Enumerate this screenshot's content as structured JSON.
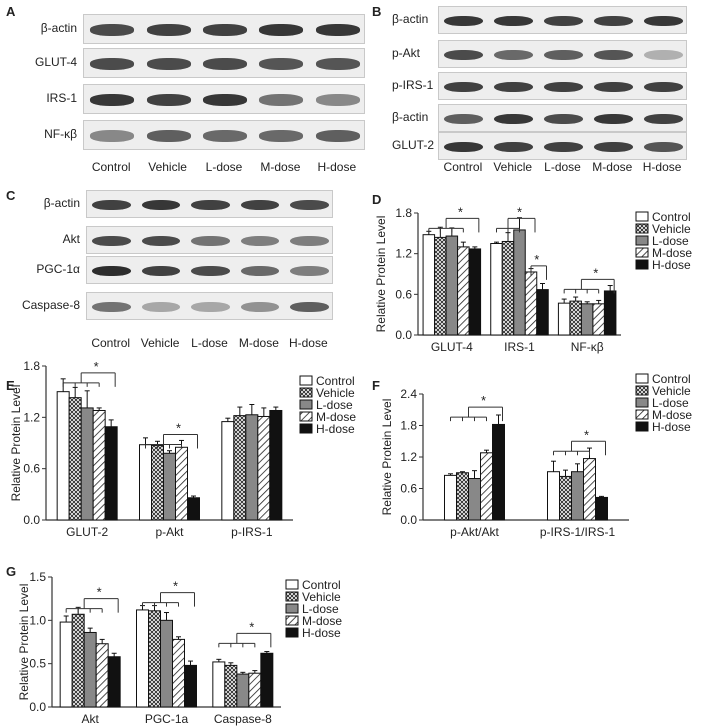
{
  "colors": {
    "band": "#222222",
    "strip": "#eeeeee",
    "axis": "#333333",
    "fills": [
      "#ffffff",
      "crosshatch",
      "#888888",
      "diagonal",
      "#111111"
    ]
  },
  "blots": {
    "A": {
      "letter": "A",
      "rows": [
        "β-actin",
        "GLUT-4",
        "IRS-1",
        "NF-κβ"
      ],
      "intensity": [
        [
          0.8,
          0.85,
          0.85,
          0.9,
          0.9
        ],
        [
          0.8,
          0.8,
          0.8,
          0.75,
          0.75
        ],
        [
          0.9,
          0.85,
          0.9,
          0.6,
          0.5
        ],
        [
          0.5,
          0.7,
          0.65,
          0.65,
          0.7
        ]
      ],
      "lanes": [
        "Control",
        "Vehicle",
        "L-dose",
        "M-dose",
        "H-dose"
      ]
    },
    "B": {
      "letter": "B",
      "rows": [
        "β-actin",
        "p-Akt",
        "p-IRS-1",
        "β-actin",
        "GLUT-2"
      ],
      "intensity": [
        [
          0.9,
          0.9,
          0.85,
          0.85,
          0.9
        ],
        [
          0.8,
          0.65,
          0.7,
          0.75,
          0.3
        ],
        [
          0.85,
          0.85,
          0.85,
          0.85,
          0.85
        ],
        [
          0.7,
          0.9,
          0.8,
          0.9,
          0.85
        ],
        [
          0.9,
          0.85,
          0.85,
          0.85,
          0.75
        ]
      ],
      "lanes": [
        "Control",
        "Vehicle",
        "L-dose",
        "M-dose",
        "H-dose"
      ]
    },
    "C": {
      "letter": "C",
      "rows": [
        "β-actin",
        "Akt",
        "PGC-1α",
        "Caspase-8"
      ],
      "intensity": [
        [
          0.85,
          0.9,
          0.85,
          0.85,
          0.8
        ],
        [
          0.8,
          0.8,
          0.6,
          0.55,
          0.55
        ],
        [
          0.95,
          0.85,
          0.8,
          0.65,
          0.55
        ],
        [
          0.6,
          0.35,
          0.35,
          0.45,
          0.7
        ]
      ],
      "lanes": [
        "Control",
        "Vehicle",
        "L-dose",
        "M-dose",
        "H-dose"
      ]
    }
  },
  "chart_data": [
    {
      "letter": "D",
      "type": "bar",
      "categories": [
        "GLUT-4",
        "IRS-1",
        "NF-κβ"
      ],
      "ylabel": "Relative Protein Level",
      "ylim": [
        0,
        1.8
      ],
      "yticks": [
        "0.0",
        "0.6",
        "1.2",
        "1.8"
      ],
      "ytick_values": [
        0,
        0.6,
        1.2,
        1.8
      ],
      "series": [
        {
          "name": "Control",
          "values": [
            1.48,
            1.35,
            0.47
          ],
          "errors": [
            0.05,
            0.02,
            0.06
          ]
        },
        {
          "name": "Vehicle",
          "values": [
            1.44,
            1.38,
            0.5
          ],
          "errors": [
            0.15,
            0.13,
            0.06
          ]
        },
        {
          "name": "L-dose",
          "values": [
            1.46,
            1.55,
            0.46
          ],
          "errors": [
            0.12,
            0.18,
            0.03
          ]
        },
        {
          "name": "M-dose",
          "values": [
            1.3,
            0.93,
            0.46
          ],
          "errors": [
            0.07,
            0.05,
            0.05
          ]
        },
        {
          "name": "H-dose",
          "values": [
            1.27,
            0.67,
            0.65
          ],
          "errors": [
            0.03,
            0.09,
            0.08
          ]
        }
      ],
      "annotations": [
        "*",
        "*",
        "*",
        "*"
      ],
      "legend": "right"
    },
    {
      "letter": "E",
      "type": "bar",
      "categories": [
        "GLUT-2",
        "p-Akt",
        "p-IRS-1"
      ],
      "ylabel": "Relative Protein Level",
      "ylim": [
        0,
        1.8
      ],
      "yticks": [
        "0.0",
        "0.6",
        "1.2",
        "1.8"
      ],
      "ytick_values": [
        0,
        0.6,
        1.2,
        1.8
      ],
      "series": [
        {
          "name": "Control",
          "values": [
            1.5,
            0.88,
            1.15
          ],
          "errors": [
            0.15,
            0.08,
            0.04
          ]
        },
        {
          "name": "Vehicle",
          "values": [
            1.43,
            0.87,
            1.22
          ],
          "errors": [
            0.12,
            0.05,
            0.1
          ]
        },
        {
          "name": "L-dose",
          "values": [
            1.31,
            0.78,
            1.23
          ],
          "errors": [
            0.2,
            0.03,
            0.12
          ]
        },
        {
          "name": "M-dose",
          "values": [
            1.28,
            0.85,
            1.21
          ],
          "errors": [
            0.03,
            0.08,
            0.1
          ]
        },
        {
          "name": "H-dose",
          "values": [
            1.09,
            0.26,
            1.28
          ],
          "errors": [
            0.08,
            0.02,
            0.04
          ]
        }
      ],
      "annotations": [
        "*",
        "*"
      ],
      "legend": "right"
    },
    {
      "letter": "F",
      "type": "bar",
      "categories": [
        "p-Akt/Akt",
        "p-IRS-1/IRS-1"
      ],
      "ylabel": "Relative Protein Level",
      "ylim": [
        0,
        2.4
      ],
      "yticks": [
        "0.0",
        "0.6",
        "1.2",
        "1.8",
        "2.4"
      ],
      "ytick_values": [
        0,
        0.6,
        1.2,
        1.8,
        2.4
      ],
      "series": [
        {
          "name": "Control",
          "values": [
            0.85,
            0.92
          ],
          "errors": [
            0.03,
            0.2
          ]
        },
        {
          "name": "Vehicle",
          "values": [
            0.9,
            0.83
          ],
          "errors": [
            0.02,
            0.12
          ]
        },
        {
          "name": "L-dose",
          "values": [
            0.79,
            0.92
          ],
          "errors": [
            0.15,
            0.15
          ]
        },
        {
          "name": "M-dose",
          "values": [
            1.28,
            1.17
          ],
          "errors": [
            0.05,
            0.2
          ]
        },
        {
          "name": "H-dose",
          "values": [
            1.82,
            0.43
          ],
          "errors": [
            0.18,
            0.02
          ]
        }
      ],
      "annotations": [
        "*",
        "*"
      ],
      "legend": "right"
    },
    {
      "letter": "G",
      "type": "bar",
      "categories": [
        "Akt",
        "PGC-1a",
        "Caspase-8"
      ],
      "ylabel": "Relative Protein Level",
      "ylim": [
        0,
        1.5
      ],
      "yticks": [
        "0.0",
        "0.5",
        "1.0",
        "1.5"
      ],
      "ytick_values": [
        0,
        0.5,
        1.0,
        1.5
      ],
      "series": [
        {
          "name": "Control",
          "values": [
            0.98,
            1.12,
            0.52
          ],
          "errors": [
            0.07,
            0.05,
            0.03
          ]
        },
        {
          "name": "Vehicle",
          "values": [
            1.07,
            1.11,
            0.48
          ],
          "errors": [
            0.08,
            0.06,
            0.03
          ]
        },
        {
          "name": "L-dose",
          "values": [
            0.86,
            1.0,
            0.38
          ],
          "errors": [
            0.05,
            0.09,
            0.02
          ]
        },
        {
          "name": "M-dose",
          "values": [
            0.73,
            0.78,
            0.39
          ],
          "errors": [
            0.05,
            0.03,
            0.03
          ]
        },
        {
          "name": "H-dose",
          "values": [
            0.58,
            0.48,
            0.62
          ],
          "errors": [
            0.04,
            0.05,
            0.02
          ]
        }
      ],
      "annotations": [
        "*",
        "*",
        "*"
      ],
      "legend": "right"
    }
  ]
}
